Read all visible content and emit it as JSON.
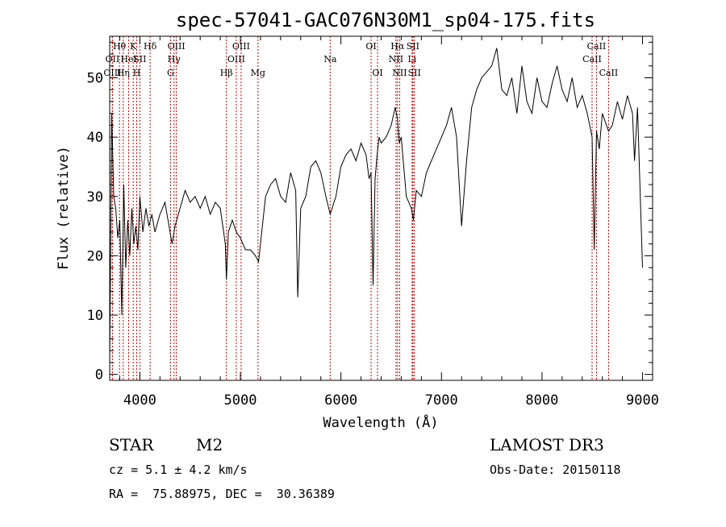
{
  "chart_data": {
    "type": "line",
    "title": "spec-57041-GAC076N30M1_sp04-175.fits",
    "xlabel": "Wavelength (Å)",
    "ylabel": "Flux (relative)",
    "xlim": [
      3700,
      9100
    ],
    "ylim": [
      -1,
      57
    ],
    "xticks": [
      4000,
      5000,
      6000,
      7000,
      8000,
      9000
    ],
    "yticks": [
      0,
      10,
      20,
      30,
      40,
      50
    ],
    "grid": false,
    "series": [
      {
        "x": [
          3700,
          3720,
          3740,
          3760,
          3780,
          3800,
          3820,
          3840,
          3860,
          3880,
          3900,
          3920,
          3940,
          3960,
          3980,
          4000,
          4030,
          4060,
          4090,
          4120,
          4150,
          4200,
          4250,
          4300,
          4320,
          4350,
          4400,
          4450,
          4500,
          4550,
          4600,
          4650,
          4700,
          4750,
          4800,
          4850,
          4861,
          4880,
          4920,
          4960,
          5000,
          5050,
          5100,
          5150,
          5180,
          5200,
          5250,
          5300,
          5350,
          5400,
          5450,
          5500,
          5550,
          5570,
          5600,
          5650,
          5700,
          5750,
          5800,
          5850,
          5893,
          5950,
          6000,
          6050,
          6100,
          6150,
          6200,
          6250,
          6280,
          6300,
          6320,
          6340,
          6360,
          6380,
          6400,
          6450,
          6500,
          6540,
          6563,
          6580,
          6600,
          6620,
          6650,
          6700,
          6720,
          6750,
          6800,
          6850,
          6900,
          6950,
          7000,
          7050,
          7100,
          7150,
          7200,
          7250,
          7300,
          7350,
          7400,
          7450,
          7500,
          7550,
          7600,
          7650,
          7700,
          7750,
          7800,
          7850,
          7900,
          7950,
          8000,
          8050,
          8100,
          8150,
          8200,
          8250,
          8300,
          8350,
          8400,
          8450,
          8498,
          8520,
          8542,
          8570,
          8600,
          8662,
          8700,
          8750,
          8800,
          8850,
          8900,
          8920,
          8950,
          9000
        ],
        "values": [
          2,
          44,
          30,
          28,
          23,
          26,
          10,
          32,
          18,
          26,
          20,
          28,
          22,
          25,
          21,
          30,
          24,
          28,
          25,
          27,
          24,
          27,
          29,
          24,
          22,
          25,
          28,
          31,
          29,
          30,
          28,
          30,
          27,
          29,
          28,
          22,
          16,
          24,
          26,
          24,
          23,
          21,
          21,
          20,
          19,
          22,
          30,
          32,
          33,
          30,
          29,
          34,
          31,
          13,
          28,
          30,
          35,
          36,
          34,
          30,
          27,
          30,
          35,
          37,
          38,
          36,
          39,
          37,
          33,
          34,
          15,
          33,
          37,
          40,
          39,
          40,
          42,
          45,
          43,
          39,
          40,
          36,
          30,
          28,
          26,
          31,
          30,
          34,
          36,
          38,
          40,
          42,
          45,
          40,
          25,
          36,
          45,
          48,
          50,
          51,
          52,
          55,
          48,
          47,
          50,
          44,
          52,
          46,
          44,
          50,
          46,
          45,
          49,
          52,
          48,
          46,
          50,
          45,
          47,
          44,
          40,
          21,
          41,
          38,
          44,
          41,
          42,
          46,
          43,
          47,
          44,
          36,
          45,
          18
        ]
      }
    ],
    "spectral_lines": [
      {
        "label": "Hθ",
        "x": 3797,
        "row": 1
      },
      {
        "label": "OII",
        "x": 3727,
        "row": 2
      },
      {
        "label": "OIII",
        "x": 3727,
        "row": 3
      },
      {
        "label": "Hη",
        "x": 3835,
        "row": 3
      },
      {
        "label": "HeI",
        "x": 3889,
        "row": 2
      },
      {
        "label": "K",
        "x": 3934,
        "row": 1
      },
      {
        "label": "SII",
        "x": 4000,
        "row": 2
      },
      {
        "label": "H",
        "x": 3969,
        "row": 3
      },
      {
        "label": "Hδ",
        "x": 4102,
        "row": 1
      },
      {
        "label": "OIII",
        "x": 4363,
        "row": 1
      },
      {
        "label": "Hγ",
        "x": 4340,
        "row": 2
      },
      {
        "label": "G",
        "x": 4305,
        "row": 3
      },
      {
        "label": "OIII",
        "x": 5007,
        "row": 1
      },
      {
        "label": "OIII",
        "x": 4959,
        "row": 2
      },
      {
        "label": "Hβ",
        "x": 4861,
        "row": 3
      },
      {
        "label": "Mg",
        "x": 5175,
        "row": 3
      },
      {
        "label": "Na",
        "x": 5893,
        "row": 2
      },
      {
        "label": "OI",
        "x": 6300,
        "row": 1
      },
      {
        "label": "OI",
        "x": 6364,
        "row": 3
      },
      {
        "label": "Hα",
        "x": 6563,
        "row": 1
      },
      {
        "label": "SII",
        "x": 6716,
        "row": 1
      },
      {
        "label": "NII",
        "x": 6548,
        "row": 2
      },
      {
        "label": "Li",
        "x": 6708,
        "row": 2
      },
      {
        "label": "NII",
        "x": 6584,
        "row": 3
      },
      {
        "label": "SII",
        "x": 6731,
        "row": 3
      },
      {
        "label": "CaII",
        "x": 8542,
        "row": 1
      },
      {
        "label": "CaII",
        "x": 8498,
        "row": 2
      },
      {
        "label": "CaII",
        "x": 8662,
        "row": 3
      }
    ],
    "line_colors": {
      "spectrum": "#000000",
      "markers": "#cc0000"
    }
  },
  "info": {
    "class": "STAR",
    "subclass": "M2",
    "survey": "LAMOST DR3",
    "cz": "cz = 5.1 ± 4.2 km/s",
    "obs_date": "Obs-Date: 20150118",
    "coords": "RA =  75.88975, DEC =  30.36389"
  }
}
